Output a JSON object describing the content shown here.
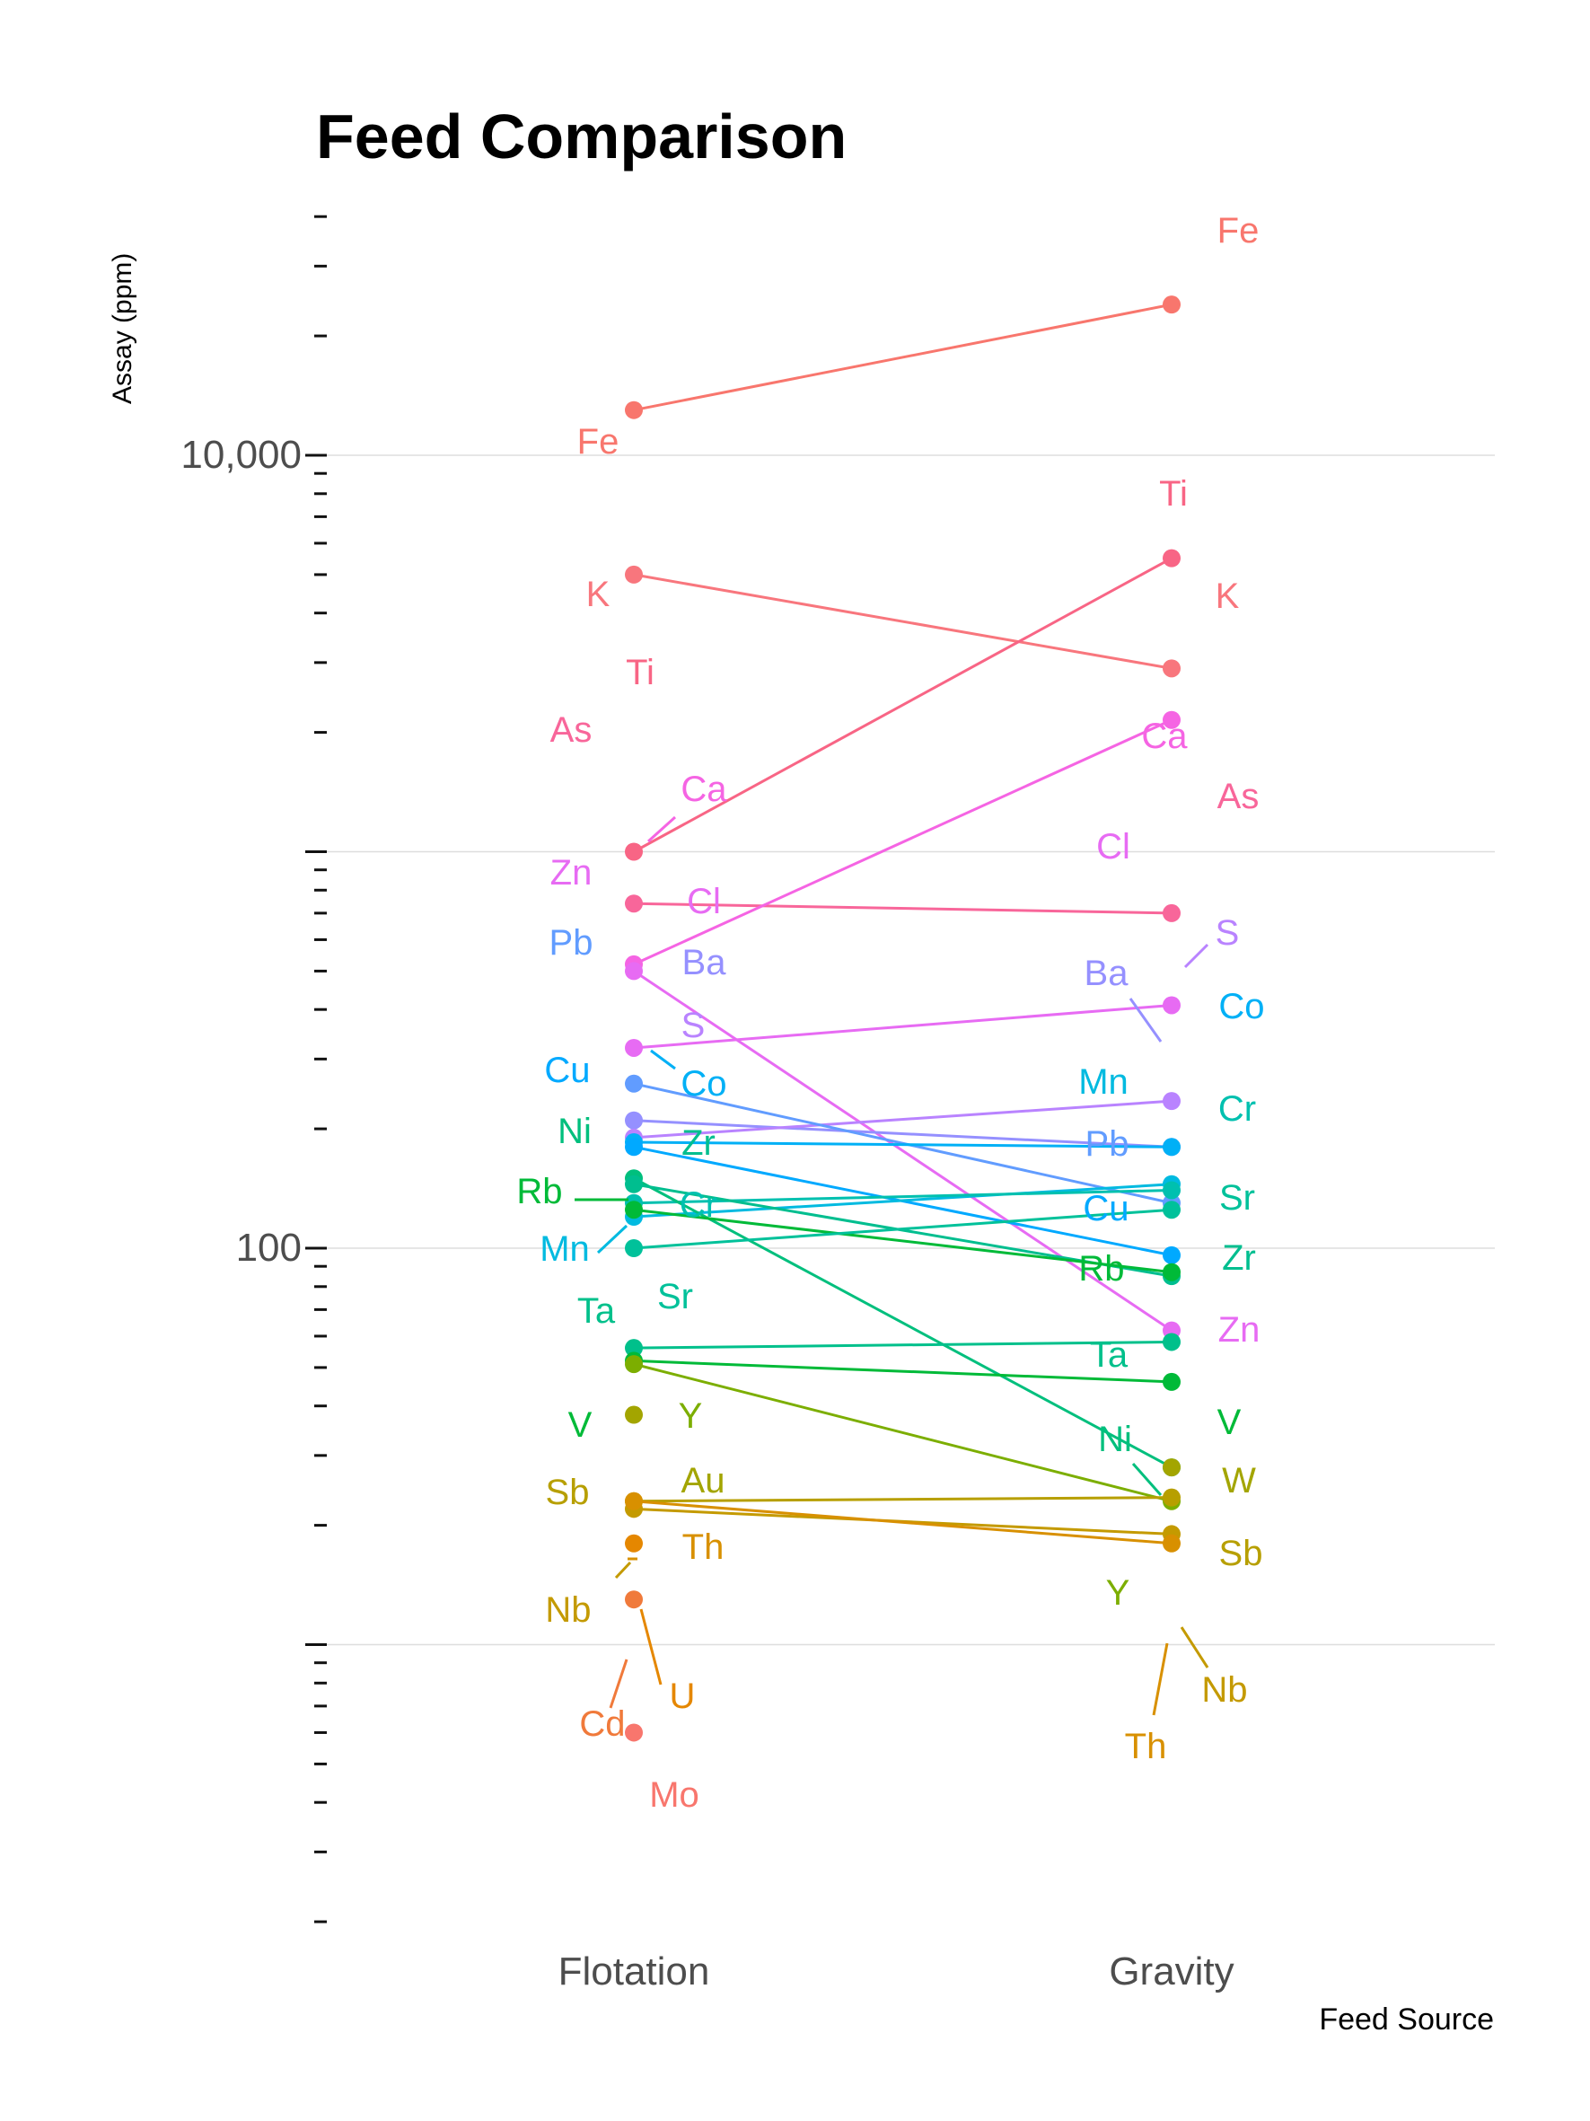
{
  "chart_data": {
    "type": "line",
    "title": "Feed Comparison",
    "xlabel": "Feed Source",
    "ylabel": "Assay (ppm)",
    "yscale": "log10",
    "ylim": [
      3.5,
      30000
    ],
    "y_tick_labels": [
      "10,000",
      "100"
    ],
    "grid": true,
    "legend": "none",
    "categories": [
      "Flotation",
      "Gravity"
    ],
    "series": [
      {
        "name": "Fe",
        "color": "#F8766D",
        "values": [
          13000,
          24000
        ]
      },
      {
        "name": "K",
        "color": "#F8767D",
        "values": [
          5000,
          2900
        ]
      },
      {
        "name": "Ti",
        "color": "#F86585",
        "values": [
          1000,
          5500
        ]
      },
      {
        "name": "As",
        "color": "#F8669A",
        "values": [
          740,
          700
        ]
      },
      {
        "name": "Ca",
        "color": "#F564E3",
        "values": [
          520,
          2150
        ]
      },
      {
        "name": "Zn",
        "color": "#E76BF3",
        "values": [
          500,
          62
        ]
      },
      {
        "name": "Cl",
        "color": "#E76BF3",
        "values": [
          320,
          410
        ]
      },
      {
        "name": "Ba",
        "color": "#9590FF",
        "values": [
          210,
          180
        ]
      },
      {
        "name": "S",
        "color": "#B983FF",
        "values": [
          190,
          235
        ]
      },
      {
        "name": "Pb",
        "color": "#619CFF",
        "values": [
          260,
          130
        ]
      },
      {
        "name": "Co",
        "color": "#00B0F6",
        "values": [
          185,
          180
        ]
      },
      {
        "name": "Cu",
        "color": "#00A9FF",
        "values": [
          180,
          96
        ]
      },
      {
        "name": "Mn",
        "color": "#00BAE0",
        "values": [
          120,
          145
        ]
      },
      {
        "name": "Cr",
        "color": "#00C0AF",
        "values": [
          130,
          140
        ]
      },
      {
        "name": "Ni",
        "color": "#00BF7D",
        "values": [
          150,
          28
        ]
      },
      {
        "name": "Zr",
        "color": "#00BE8F",
        "values": [
          145,
          85
        ]
      },
      {
        "name": "Rb",
        "color": "#00BA38",
        "values": [
          125,
          87
        ]
      },
      {
        "name": "Sr",
        "color": "#00C19A",
        "values": [
          100,
          125
        ]
      },
      {
        "name": "Ta",
        "color": "#00C08B",
        "values": [
          56,
          58
        ]
      },
      {
        "name": "V",
        "color": "#00BA38",
        "values": [
          52,
          46
        ]
      },
      {
        "name": "Y",
        "color": "#7CAE00",
        "values": [
          51,
          23
        ]
      },
      {
        "name": "Au",
        "color": "#A3A500",
        "values": [
          38,
          0
        ]
      },
      {
        "name": "Sb",
        "color": "#B79F00",
        "values": [
          23,
          23.5
        ]
      },
      {
        "name": "Nb",
        "color": "#C49A00",
        "values": [
          22,
          19
        ]
      },
      {
        "name": "Th",
        "color": "#D89000",
        "values": [
          23,
          18
        ]
      },
      {
        "name": "U",
        "color": "#E58700",
        "values": [
          18,
          0
        ]
      },
      {
        "name": "Cd",
        "color": "#F07A3B",
        "values": [
          13,
          0
        ]
      },
      {
        "name": "Mo",
        "color": "#F8766D",
        "values": [
          6,
          0
        ]
      },
      {
        "name": "W",
        "color": "#A3A500",
        "values": [
          0,
          28
        ]
      }
    ],
    "point_labels": {
      "Flotation": [
        {
          "text": "Fe",
          "color": "#F8766D"
        },
        {
          "text": "K",
          "color": "#F8767D"
        },
        {
          "text": "Ti",
          "color": "#F86585"
        },
        {
          "text": "As",
          "color": "#F8669A"
        },
        {
          "text": "Ca",
          "color": "#F564E3"
        },
        {
          "text": "Zn",
          "color": "#E76BF3"
        },
        {
          "text": "Cl",
          "color": "#E76BF3"
        },
        {
          "text": "Pb",
          "color": "#619CFF"
        },
        {
          "text": "Ba",
          "color": "#9590FF"
        },
        {
          "text": "S",
          "color": "#B983FF"
        },
        {
          "text": "Cu",
          "color": "#00A9FF"
        },
        {
          "text": "Co",
          "color": "#00B0F6"
        },
        {
          "text": "Ni",
          "color": "#00BF7D"
        },
        {
          "text": "Zr",
          "color": "#00BE8F"
        },
        {
          "text": "Rb",
          "color": "#00BA38"
        },
        {
          "text": "Cr",
          "color": "#00C0AF"
        },
        {
          "text": "Mn",
          "color": "#00BAE0"
        },
        {
          "text": "Ta",
          "color": "#00C08B"
        },
        {
          "text": "Sr",
          "color": "#00C19A"
        },
        {
          "text": "V",
          "color": "#00BA38"
        },
        {
          "text": "Y",
          "color": "#7CAE00"
        },
        {
          "text": "Au",
          "color": "#A3A500"
        },
        {
          "text": "Sb",
          "color": "#B79F00"
        },
        {
          "text": "Th",
          "color": "#D89000"
        },
        {
          "text": "Nb",
          "color": "#C49A00"
        },
        {
          "text": "U",
          "color": "#E58700"
        },
        {
          "text": "Cd",
          "color": "#F07A3B"
        },
        {
          "text": "Mo",
          "color": "#F8766D"
        }
      ],
      "Gravity": [
        {
          "text": "Fe",
          "color": "#F8766D"
        },
        {
          "text": "Ti",
          "color": "#F86585"
        },
        {
          "text": "K",
          "color": "#F8767D"
        },
        {
          "text": "Ca",
          "color": "#F564E3"
        },
        {
          "text": "As",
          "color": "#F8669A"
        },
        {
          "text": "Cl",
          "color": "#E76BF3"
        },
        {
          "text": "S",
          "color": "#B983FF"
        },
        {
          "text": "Ba",
          "color": "#9590FF"
        },
        {
          "text": "Co",
          "color": "#00B0F6"
        },
        {
          "text": "Mn",
          "color": "#00BAE0"
        },
        {
          "text": "Cr",
          "color": "#00C0AF"
        },
        {
          "text": "Pb",
          "color": "#619CFF"
        },
        {
          "text": "Sr",
          "color": "#00C19A"
        },
        {
          "text": "Cu",
          "color": "#00A9FF"
        },
        {
          "text": "Zr",
          "color": "#00BE8F"
        },
        {
          "text": "Rb",
          "color": "#00BA38"
        },
        {
          "text": "Zn",
          "color": "#E76BF3"
        },
        {
          "text": "Ta",
          "color": "#00C08B"
        },
        {
          "text": "V",
          "color": "#00BA38"
        },
        {
          "text": "Ni",
          "color": "#00BF7D"
        },
        {
          "text": "W",
          "color": "#A3A500"
        },
        {
          "text": "Sb",
          "color": "#B79F00"
        },
        {
          "text": "Y",
          "color": "#7CAE00"
        },
        {
          "text": "Nb",
          "color": "#C49A00"
        },
        {
          "text": "Th",
          "color": "#D89000"
        }
      ]
    }
  }
}
